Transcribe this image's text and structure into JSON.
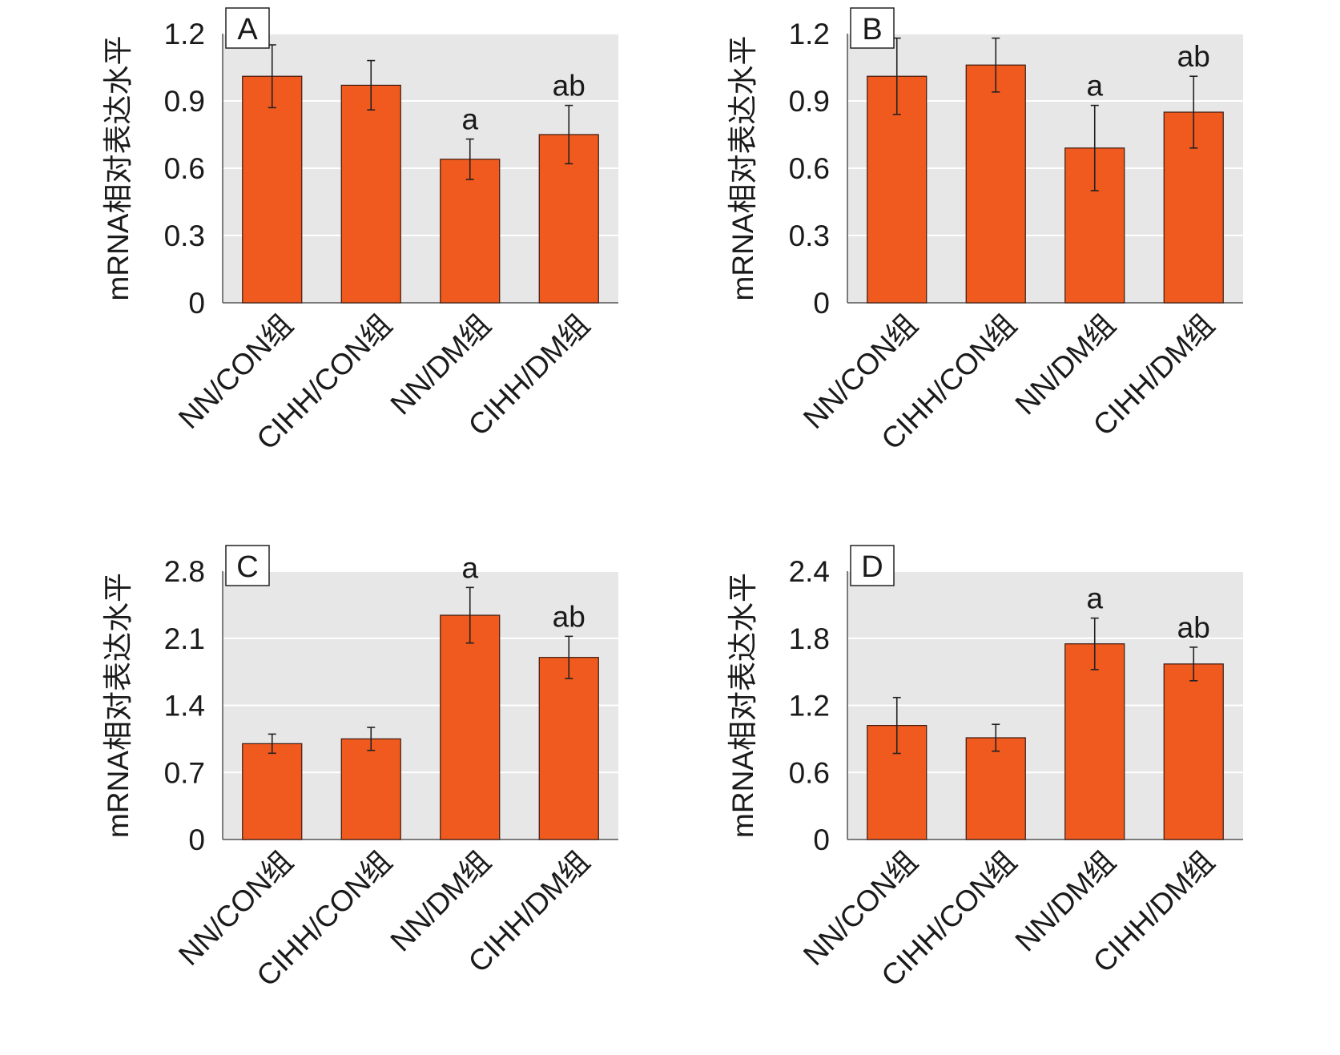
{
  "chart_data": [
    {
      "type": "bar",
      "panel_label": "A",
      "categories": [
        "NN/CON组",
        "CIHH/CON组",
        "NN/DM组",
        "CIHH/DM组"
      ],
      "values": [
        1.01,
        0.97,
        0.64,
        0.75
      ],
      "errors": [
        0.14,
        0.11,
        0.09,
        0.13
      ],
      "annotations": [
        "",
        "",
        "a",
        "ab"
      ],
      "ylabel": "mRNA相对表达水平",
      "ylim": [
        0,
        1.2
      ],
      "yticks": [
        0,
        0.3,
        0.6,
        0.9,
        1.2
      ],
      "ytick_labels": [
        "0",
        "0.3",
        "0.6",
        "0.9",
        "1.2"
      ],
      "label_position": "top-left",
      "grid": true,
      "bar_color": "#f05a1e"
    },
    {
      "type": "bar",
      "panel_label": "B",
      "categories": [
        "NN/CON组",
        "CIHH/CON组",
        "NN/DM组",
        "CIHH/DM组"
      ],
      "values": [
        1.01,
        1.06,
        0.69,
        0.85
      ],
      "errors": [
        0.17,
        0.12,
        0.19,
        0.16
      ],
      "annotations": [
        "",
        "",
        "a",
        "ab"
      ],
      "ylabel": "mRNA相对表达水平",
      "ylim": [
        0,
        1.2
      ],
      "yticks": [
        0,
        0.3,
        0.6,
        0.9,
        1.2
      ],
      "ytick_labels": [
        "0",
        "0.3",
        "0.6",
        "0.9",
        "1.2"
      ],
      "label_position": "top-left",
      "grid": true,
      "bar_color": "#f05a1e"
    },
    {
      "type": "bar",
      "panel_label": "C",
      "categories": [
        "NN/CON组",
        "CIHH/CON组",
        "NN/DM组",
        "CIHH/DM组"
      ],
      "values": [
        1.0,
        1.05,
        2.34,
        1.9
      ],
      "errors": [
        0.1,
        0.12,
        0.29,
        0.22
      ],
      "annotations": [
        "",
        "",
        "a",
        "ab"
      ],
      "ylabel": "mRNA相对表达水平",
      "ylim": [
        0,
        2.8
      ],
      "yticks": [
        0,
        0.7,
        1.4,
        2.1,
        2.8
      ],
      "ytick_labels": [
        "0",
        "0.7",
        "1.4",
        "2.1",
        "2.8"
      ],
      "label_position": "top-left",
      "grid": true,
      "bar_color": "#f05a1e"
    },
    {
      "type": "bar",
      "panel_label": "D",
      "categories": [
        "NN/CON组",
        "CIHH/CON组",
        "NN/DM组",
        "CIHH/DM组"
      ],
      "values": [
        1.02,
        0.91,
        1.75,
        1.57
      ],
      "errors": [
        0.25,
        0.12,
        0.23,
        0.15
      ],
      "annotations": [
        "",
        "",
        "a",
        "ab"
      ],
      "ylabel": "mRNA相对表达水平",
      "ylim": [
        0,
        2.4
      ],
      "yticks": [
        0,
        0.6,
        1.2,
        1.8,
        2.4
      ],
      "ytick_labels": [
        "0",
        "0.6",
        "1.2",
        "1.8",
        "2.4"
      ],
      "label_position": "top-left",
      "grid": true,
      "bar_color": "#f05a1e"
    }
  ]
}
